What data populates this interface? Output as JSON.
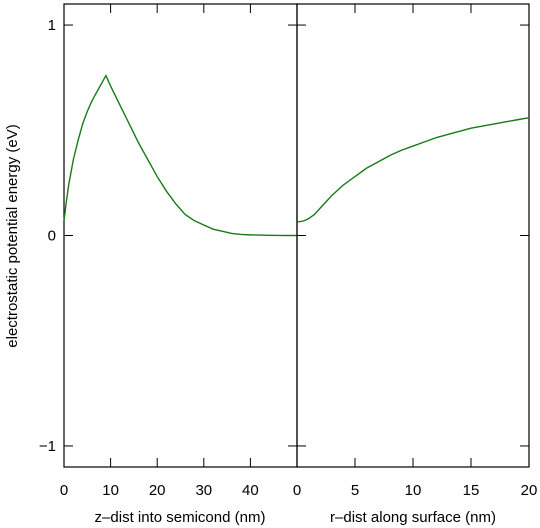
{
  "chart_data": [
    {
      "type": "line",
      "xlabel": "z–dist into semicond (nm)",
      "ylabel": "electrostatic potential energy (eV)",
      "xlim": [
        0,
        50
      ],
      "ylim": [
        -1.1,
        1.1
      ],
      "xticks": [
        0,
        10,
        20,
        30,
        40
      ],
      "yticks": [
        -1,
        0,
        1
      ],
      "ytick_labels": [
        "−1",
        "0",
        "1"
      ],
      "grid": false,
      "color": "#1a7a1a",
      "series": [
        {
          "x": [
            0,
            0.5,
            1,
            2,
            3,
            4,
            5,
            6,
            7,
            8,
            9,
            10,
            12,
            14,
            16,
            18,
            20,
            22,
            24,
            26,
            28,
            30,
            32,
            34,
            36,
            38,
            40,
            42,
            44,
            46,
            48,
            50
          ],
          "values": [
            0.07,
            0.16,
            0.24,
            0.36,
            0.45,
            0.53,
            0.59,
            0.64,
            0.68,
            0.72,
            0.76,
            0.71,
            0.62,
            0.53,
            0.44,
            0.36,
            0.28,
            0.21,
            0.15,
            0.1,
            0.07,
            0.05,
            0.03,
            0.02,
            0.01,
            0.005,
            0.003,
            0.002,
            0.001,
            0.0005,
            0.0,
            0.0
          ]
        }
      ]
    },
    {
      "type": "line",
      "xlabel": "r–dist along surface (nm)",
      "ylabel": "",
      "xlim": [
        0,
        20
      ],
      "ylim": [
        -1.1,
        1.1
      ],
      "xticks": [
        0,
        5,
        10,
        15,
        20
      ],
      "yticks": [
        -1,
        0,
        1
      ],
      "grid": false,
      "color": "#1a7a1a",
      "series": [
        {
          "x": [
            0,
            0.3,
            0.6,
            1,
            1.5,
            2,
            3,
            4,
            5,
            6,
            7,
            8,
            9,
            10,
            11,
            12,
            13,
            14,
            15,
            16,
            17,
            18,
            19,
            20
          ],
          "values": [
            0.065,
            0.066,
            0.07,
            0.08,
            0.1,
            0.13,
            0.19,
            0.24,
            0.28,
            0.32,
            0.35,
            0.38,
            0.405,
            0.425,
            0.445,
            0.465,
            0.48,
            0.495,
            0.51,
            0.52,
            0.53,
            0.54,
            0.55,
            0.56
          ]
        }
      ]
    }
  ]
}
